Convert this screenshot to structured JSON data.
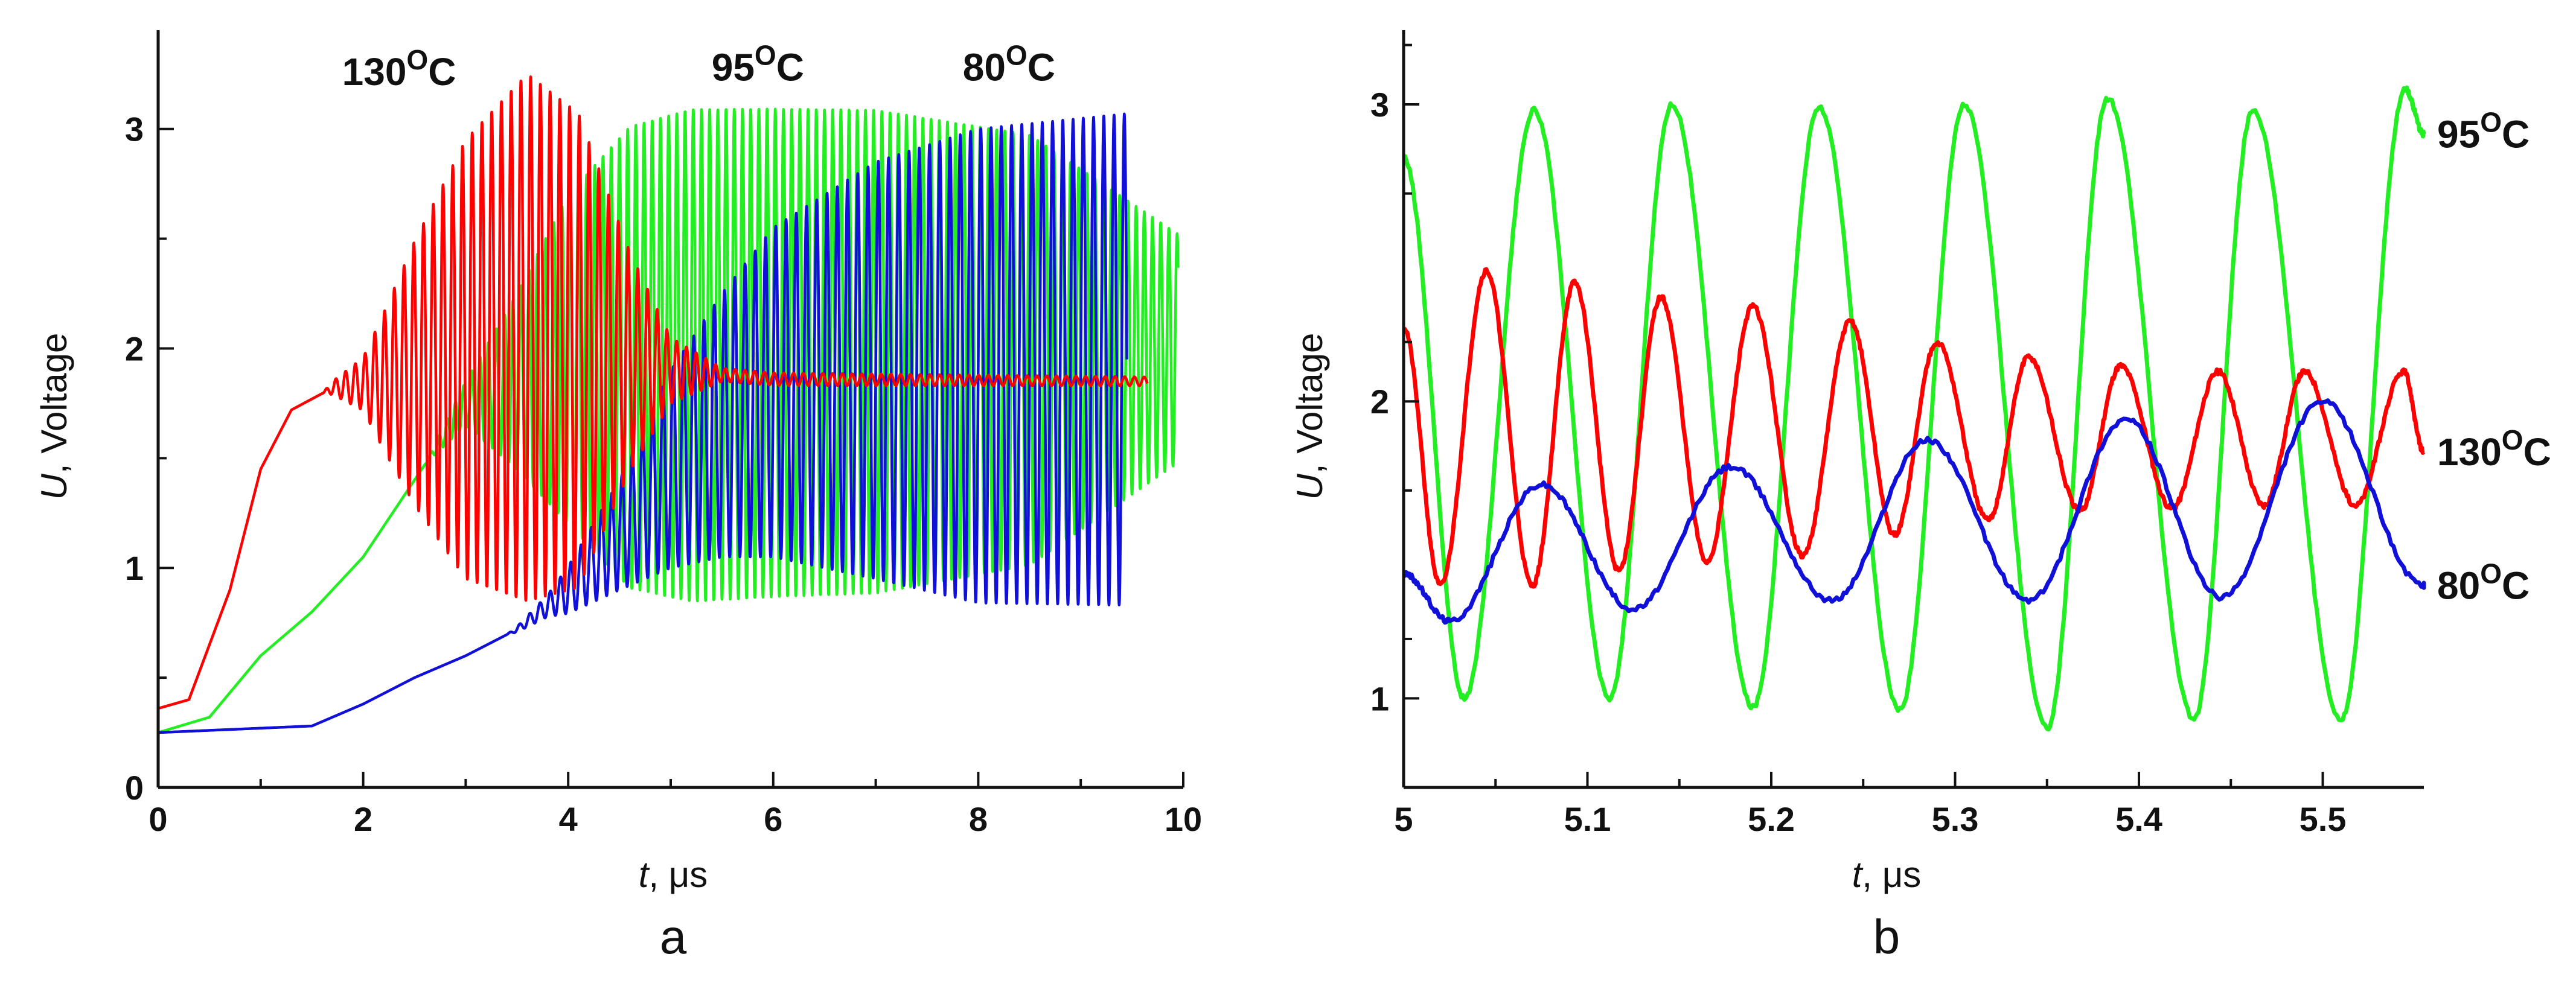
{
  "colors": {
    "red": "#ff0000",
    "green": "#22ee22",
    "blue": "#1010d8",
    "axis": "#111111"
  },
  "chart_data": [
    {
      "type": "line",
      "panel": "a",
      "xlabel_var": "t",
      "xlabel_unit": ", μs",
      "ylabel_var": "U",
      "ylabel_unit": ", Voltage",
      "xlim": [
        0,
        10
      ],
      "ylim": [
        0,
        3.45
      ],
      "xticks": [
        0,
        2,
        4,
        6,
        8,
        10
      ],
      "xtick_labels": [
        "0",
        "2",
        "4",
        "6",
        "8",
        "10"
      ],
      "yticks": [
        0,
        1,
        2,
        3
      ],
      "ytick_labels": [
        "0",
        "1",
        "2",
        "3"
      ],
      "series": [
        {
          "name": "130°C",
          "label_base": "130",
          "label_sup": "O",
          "label_unit": "C",
          "color": "red",
          "t_end": 9.65,
          "mean": [
            [
              0,
              0.36
            ],
            [
              0.3,
              0.4
            ],
            [
              0.7,
              0.9
            ],
            [
              1.0,
              1.45
            ],
            [
              1.3,
              1.72
            ],
            [
              1.7,
              1.82
            ],
            [
              2.2,
              1.85
            ],
            [
              3.0,
              1.95
            ],
            [
              3.6,
              2.05
            ],
            [
              4.2,
              1.98
            ],
            [
              5.0,
              1.9
            ],
            [
              6.0,
              1.86
            ],
            [
              9.65,
              1.85
            ]
          ],
          "amplitude": [
            [
              0,
              0
            ],
            [
              1.6,
              0
            ],
            [
              2.0,
              0.12
            ],
            [
              2.5,
              0.6
            ],
            [
              3.0,
              1.0
            ],
            [
              3.6,
              1.2
            ],
            [
              4.1,
              1.08
            ],
            [
              4.6,
              0.5
            ],
            [
              5.0,
              0.15
            ],
            [
              5.5,
              0.03
            ],
            [
              9.65,
              0.02
            ]
          ],
          "period": 0.095
        },
        {
          "name": "95°C",
          "label_base": "95",
          "label_sup": "O",
          "label_unit": "C",
          "color": "green",
          "t_end": 9.95,
          "mean": [
            [
              0,
              0.25
            ],
            [
              0.5,
              0.32
            ],
            [
              1.0,
              0.6
            ],
            [
              1.5,
              0.8
            ],
            [
              2.0,
              1.05
            ],
            [
              2.5,
              1.4
            ],
            [
              3.0,
              1.75
            ],
            [
              4.0,
              1.95
            ],
            [
              6.0,
              1.98
            ],
            [
              9.95,
              2.0
            ]
          ],
          "amplitude": [
            [
              0,
              0
            ],
            [
              2.6,
              0
            ],
            [
              3.0,
              0.1
            ],
            [
              3.5,
              0.4
            ],
            [
              4.0,
              0.75
            ],
            [
              4.6,
              1.05
            ],
            [
              5.2,
              1.12
            ],
            [
              7.0,
              1.1
            ],
            [
              8.5,
              0.98
            ],
            [
              9.95,
              0.52
            ]
          ],
          "period": 0.08
        },
        {
          "name": "80°C",
          "label_base": "80",
          "label_sup": "O",
          "label_unit": "C",
          "color": "blue",
          "t_end": 9.45,
          "mean": [
            [
              0,
              0.25
            ],
            [
              1.5,
              0.28
            ],
            [
              2.0,
              0.38
            ],
            [
              2.5,
              0.5
            ],
            [
              3.0,
              0.6
            ],
            [
              3.5,
              0.72
            ],
            [
              4.0,
              0.9
            ],
            [
              4.5,
              1.15
            ],
            [
              5.0,
              1.45
            ],
            [
              5.5,
              1.65
            ],
            [
              6.0,
              1.8
            ],
            [
              7.0,
              1.9
            ],
            [
              9.45,
              1.95
            ]
          ],
          "amplitude": [
            [
              0,
              0
            ],
            [
              3.4,
              0
            ],
            [
              3.8,
              0.05
            ],
            [
              4.5,
              0.25
            ],
            [
              5.0,
              0.45
            ],
            [
              6.0,
              0.75
            ],
            [
              7.0,
              0.95
            ],
            [
              8.0,
              1.08
            ],
            [
              9.45,
              1.12
            ]
          ],
          "period": 0.1
        }
      ],
      "annotations": [
        {
          "base": "130",
          "sup": "O",
          "unit": "C",
          "x": 2.35,
          "y": 3.2
        },
        {
          "base": "95",
          "sup": "O",
          "unit": "C",
          "x": 5.85,
          "y": 3.22
        },
        {
          "base": "80",
          "sup": "O",
          "unit": "C",
          "x": 8.3,
          "y": 3.22
        }
      ]
    },
    {
      "type": "line",
      "panel": "b",
      "xlabel_var": "t",
      "xlabel_unit": ", μs",
      "ylabel_var": "U",
      "ylabel_unit": ", Voltage",
      "xlim": [
        5,
        5.555
      ],
      "ylim": [
        0.7,
        3.25
      ],
      "xticks": [
        5,
        5.1,
        5.2,
        5.3,
        5.4,
        5.5
      ],
      "xtick_labels": [
        "5",
        "5.1",
        "5.2",
        "5.3",
        "5.4",
        "5.5"
      ],
      "yticks": [
        1,
        2,
        3
      ],
      "ytick_labels": [
        "1",
        "2",
        "3"
      ],
      "series": [
        {
          "name": "95°C",
          "label_base": "95",
          "label_sup": "O",
          "label_unit": "C",
          "color": "green",
          "peaks": [
            [
              5.0,
              2.82
            ],
            [
              5.071,
              2.98
            ],
            [
              5.146,
              3.0
            ],
            [
              5.226,
              2.99
            ],
            [
              5.305,
              3.0
            ],
            [
              5.383,
              3.02
            ],
            [
              5.462,
              2.98
            ],
            [
              5.545,
              3.05
            ]
          ],
          "troughs": [
            [
              5.033,
              1.0
            ],
            [
              5.112,
              1.0
            ],
            [
              5.19,
              0.97
            ],
            [
              5.27,
              0.96
            ],
            [
              5.35,
              0.9
            ],
            [
              5.43,
              0.93
            ],
            [
              5.51,
              0.93
            ]
          ],
          "end": [
            5.555,
            2.9
          ]
        },
        {
          "name": "130°C",
          "label_base": "130",
          "label_sup": "O",
          "label_unit": "C",
          "color": "red",
          "peaks": [
            [
              5.0,
              2.25
            ],
            [
              5.045,
              2.44
            ],
            [
              5.093,
              2.4
            ],
            [
              5.14,
              2.35
            ],
            [
              5.19,
              2.32
            ],
            [
              5.243,
              2.27
            ],
            [
              5.29,
              2.2
            ],
            [
              5.34,
              2.15
            ],
            [
              5.39,
              2.12
            ],
            [
              5.443,
              2.1
            ],
            [
              5.49,
              2.1
            ],
            [
              5.544,
              2.1
            ]
          ],
          "troughs": [
            [
              5.02,
              1.38
            ],
            [
              5.07,
              1.38
            ],
            [
              5.117,
              1.43
            ],
            [
              5.165,
              1.46
            ],
            [
              5.217,
              1.48
            ],
            [
              5.267,
              1.55
            ],
            [
              5.318,
              1.6
            ],
            [
              5.368,
              1.63
            ],
            [
              5.418,
              1.64
            ],
            [
              5.468,
              1.65
            ],
            [
              5.518,
              1.65
            ]
          ],
          "end": [
            5.555,
            1.83
          ]
        },
        {
          "name": "80°C",
          "label_base": "80",
          "label_sup": "O",
          "label_unit": "C",
          "color": "blue",
          "peaks": [
            [
              5.0,
              1.42
            ],
            [
              5.075,
              1.72
            ],
            [
              5.178,
              1.78
            ],
            [
              5.285,
              1.87
            ],
            [
              5.393,
              1.94
            ],
            [
              5.5,
              2.0
            ]
          ],
          "troughs": [
            [
              5.025,
              1.26
            ],
            [
              5.125,
              1.3
            ],
            [
              5.233,
              1.33
            ],
            [
              5.34,
              1.33
            ],
            [
              5.445,
              1.34
            ],
            [
              5.555,
              1.38
            ]
          ],
          "end": [
            5.555,
            1.38
          ]
        }
      ],
      "annotations": [
        {
          "base": "95",
          "sup": "O",
          "unit": "C",
          "series": "95°C"
        },
        {
          "base": "130",
          "sup": "O",
          "unit": "C",
          "series": "130°C"
        },
        {
          "base": "80",
          "sup": "O",
          "unit": "C",
          "series": "80°C"
        }
      ]
    }
  ]
}
